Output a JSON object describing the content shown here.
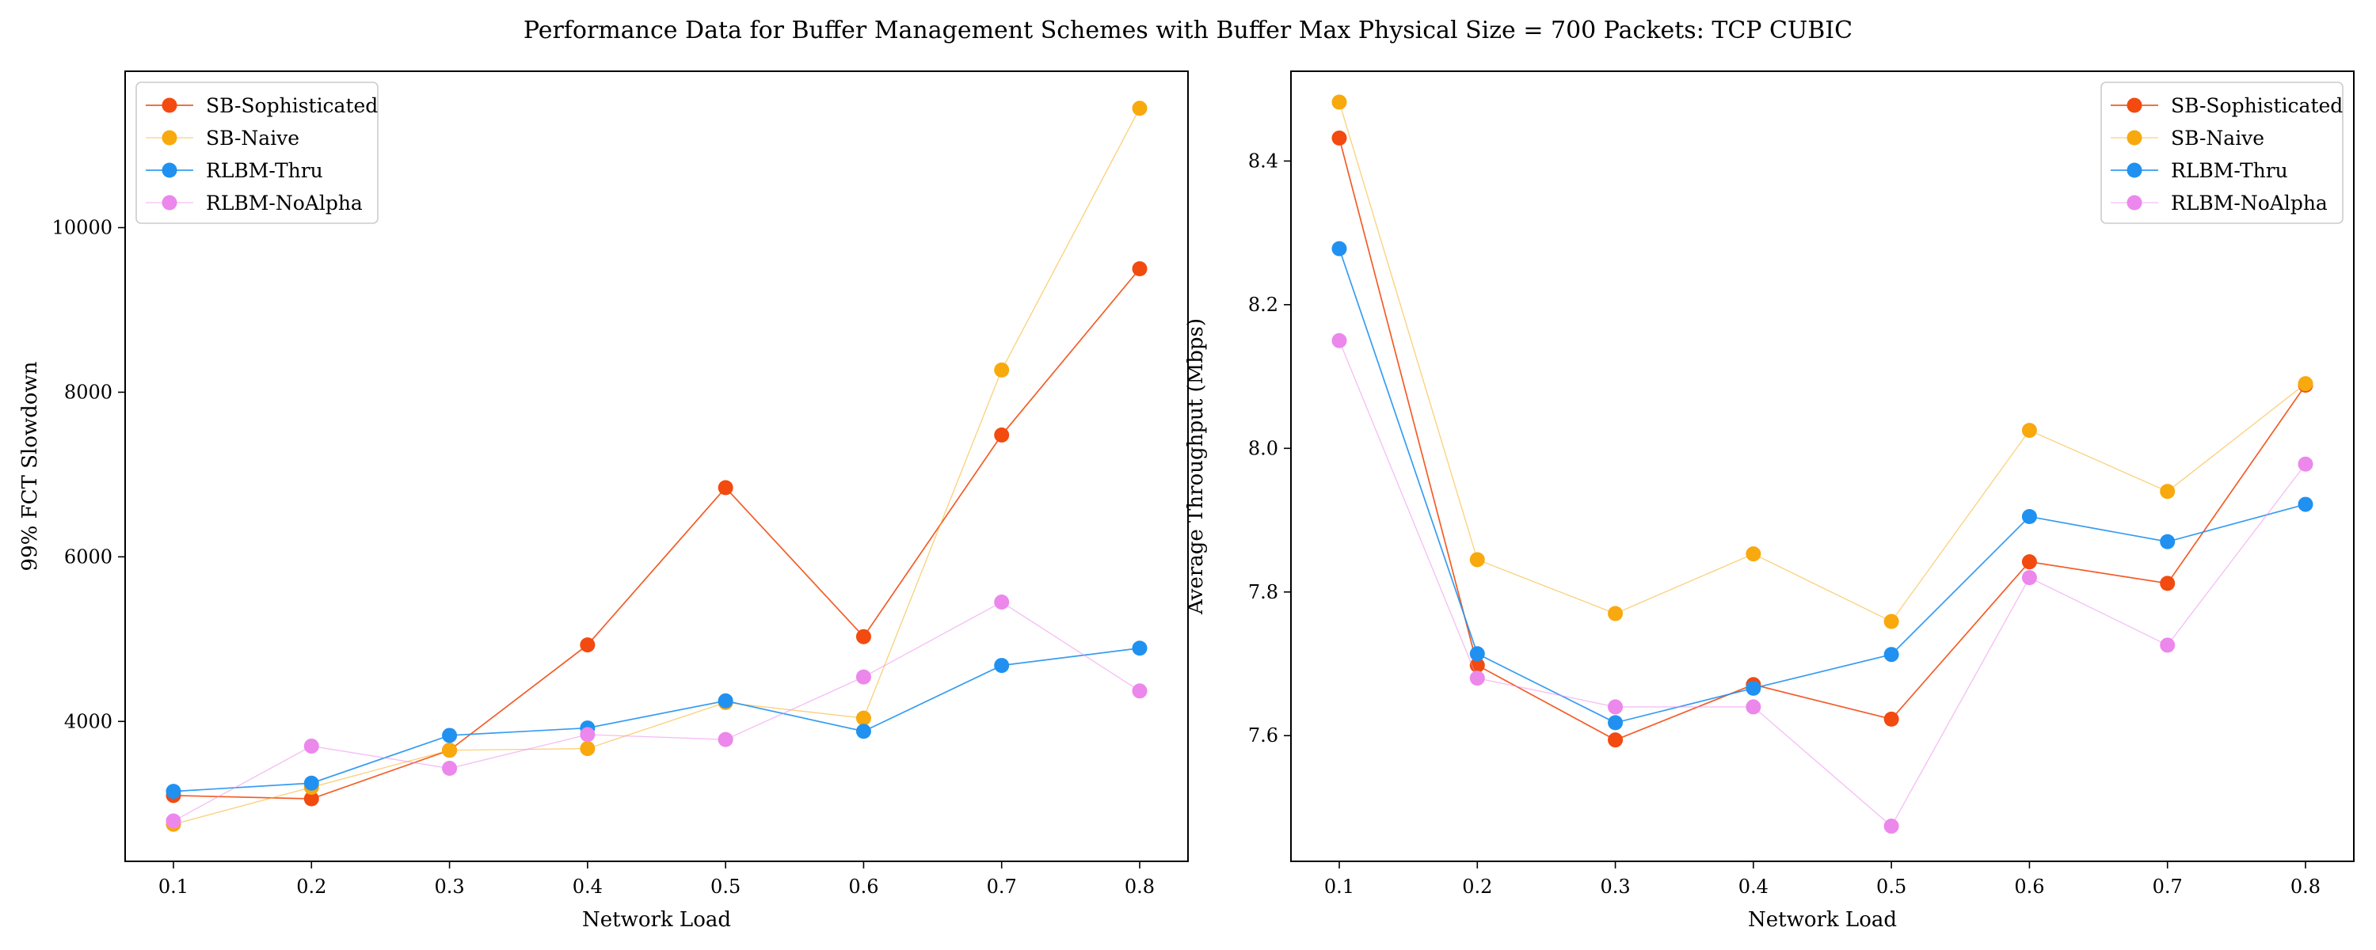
{
  "figure": {
    "title": "Performance Data for Buffer Management Schemes with Buffer Max Physical Size = 700 Packets: TCP CUBIC"
  },
  "chart_data": [
    {
      "type": "line",
      "xlabel": "Network Load",
      "ylabel": "99% FCT Slowdown",
      "x": [
        0.1,
        0.2,
        0.3,
        0.4,
        0.5,
        0.6,
        0.7,
        0.8
      ],
      "xticks": [
        "0.1",
        "0.2",
        "0.3",
        "0.4",
        "0.5",
        "0.6",
        "0.7",
        "0.8"
      ],
      "yticks": [
        4000,
        6000,
        8000,
        10000
      ],
      "ytick_labels": [
        "4000",
        "6000",
        "8000",
        "10000"
      ],
      "xlim": [
        0.065,
        0.835
      ],
      "ylim": [
        2300,
        11900
      ],
      "legend_position": "upper left",
      "grid": false,
      "series": [
        {
          "name": "SB-Sophisticated",
          "color": "#f24a0f",
          "values": [
            3100,
            3060,
            3650,
            4930,
            6840,
            5030,
            7480,
            9500
          ]
        },
        {
          "name": "SB-Naive",
          "color": "#f8a90d",
          "values": [
            2750,
            3200,
            3650,
            3670,
            4230,
            4040,
            8270,
            11450
          ]
        },
        {
          "name": "RLBM-Thru",
          "color": "#2091f0",
          "values": [
            3150,
            3250,
            3830,
            3920,
            4250,
            3880,
            4680,
            4890
          ]
        },
        {
          "name": "RLBM-NoAlpha",
          "color": "#ec87ec",
          "values": [
            2790,
            3700,
            3430,
            3840,
            3780,
            4540,
            5450,
            4370
          ]
        }
      ]
    },
    {
      "type": "line",
      "xlabel": "Network Load",
      "ylabel": "Average Throughput (Mbps)",
      "x": [
        0.1,
        0.2,
        0.3,
        0.4,
        0.5,
        0.6,
        0.7,
        0.8
      ],
      "xticks": [
        "0.1",
        "0.2",
        "0.3",
        "0.4",
        "0.5",
        "0.6",
        "0.7",
        "0.8"
      ],
      "yticks": [
        7.6,
        7.8,
        8.0,
        8.2,
        8.4
      ],
      "ytick_labels": [
        "7.6",
        "7.8",
        "8.0",
        "8.2",
        "8.4"
      ],
      "xlim": [
        0.065,
        0.835
      ],
      "ylim": [
        7.425,
        8.525
      ],
      "legend_position": "upper right",
      "grid": false,
      "series": [
        {
          "name": "SB-Sophisticated",
          "color": "#f24a0f",
          "values": [
            8.432,
            7.698,
            7.594,
            7.671,
            7.623,
            7.842,
            7.812,
            8.088
          ]
        },
        {
          "name": "SB-Naive",
          "color": "#f8a90d",
          "values": [
            8.482,
            7.845,
            7.77,
            7.853,
            7.759,
            8.025,
            7.94,
            8.09
          ]
        },
        {
          "name": "RLBM-Thru",
          "color": "#2091f0",
          "values": [
            8.278,
            7.714,
            7.618,
            7.666,
            7.713,
            7.905,
            7.87,
            7.922
          ]
        },
        {
          "name": "RLBM-NoAlpha",
          "color": "#ec87ec",
          "values": [
            8.15,
            7.68,
            7.64,
            7.64,
            7.474,
            7.82,
            7.726,
            7.978
          ]
        }
      ]
    }
  ]
}
